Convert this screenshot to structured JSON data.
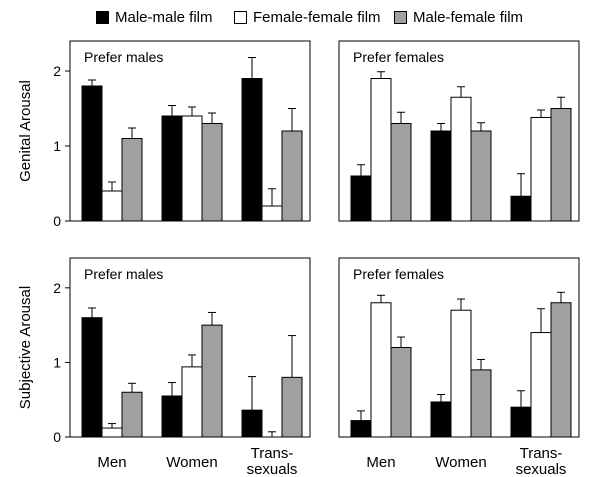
{
  "legend": [
    {
      "name": "Male-male film",
      "color": "#000000"
    },
    {
      "name": "Female-female film",
      "color": "#ffffff"
    },
    {
      "name": "Male-female film",
      "color": "#a0a0a0"
    }
  ],
  "row_labels": [
    "Genital Arousal",
    "Subjective Arousal"
  ],
  "chart_data": [
    {
      "type": "bar",
      "panel_title": "Prefer males",
      "ylabel": "Genital Arousal",
      "categories": [
        "Men",
        "Women",
        "Trans- sexuals"
      ],
      "category_lines": [
        [
          "Men"
        ],
        [
          "Women"
        ],
        [
          "Trans-",
          "sexuals"
        ]
      ],
      "show_category_labels": false,
      "yticks": [
        0,
        1,
        2
      ],
      "ylim": [
        0,
        2.4
      ],
      "series": [
        {
          "name": "Male-male film",
          "values": [
            1.8,
            1.4,
            1.9
          ],
          "errors": [
            0.08,
            0.14,
            0.28
          ]
        },
        {
          "name": "Female-female film",
          "values": [
            0.4,
            1.4,
            0.2
          ],
          "errors": [
            0.12,
            0.12,
            0.23
          ]
        },
        {
          "name": "Male-female film",
          "values": [
            1.1,
            1.3,
            1.2
          ],
          "errors": [
            0.14,
            0.14,
            0.3
          ]
        }
      ]
    },
    {
      "type": "bar",
      "panel_title": "Prefer females",
      "ylabel": "",
      "categories": [
        "Men",
        "Women",
        "Trans- sexuals"
      ],
      "category_lines": [
        [
          "Men"
        ],
        [
          "Women"
        ],
        [
          "Trans-",
          "sexuals"
        ]
      ],
      "show_category_labels": false,
      "yticks": [],
      "ylim": [
        0,
        2.4
      ],
      "series": [
        {
          "name": "Male-male film",
          "values": [
            0.6,
            1.2,
            0.33
          ],
          "errors": [
            0.15,
            0.1,
            0.3
          ]
        },
        {
          "name": "Female-female film",
          "values": [
            1.9,
            1.65,
            1.38
          ],
          "errors": [
            0.09,
            0.14,
            0.1
          ]
        },
        {
          "name": "Male-female film",
          "values": [
            1.3,
            1.2,
            1.5
          ],
          "errors": [
            0.15,
            0.11,
            0.15
          ]
        }
      ]
    },
    {
      "type": "bar",
      "panel_title": "Prefer males",
      "ylabel": "Subjective Arousal",
      "categories": [
        "Men",
        "Women",
        "Trans- sexuals"
      ],
      "category_lines": [
        [
          "Men"
        ],
        [
          "Women"
        ],
        [
          "Trans-",
          "sexuals"
        ]
      ],
      "show_category_labels": true,
      "yticks": [
        0,
        1,
        2
      ],
      "ylim": [
        0,
        2.4
      ],
      "series": [
        {
          "name": "Male-male film",
          "values": [
            1.6,
            0.55,
            0.36
          ],
          "errors": [
            0.13,
            0.18,
            0.45
          ]
        },
        {
          "name": "Female-female film",
          "values": [
            0.12,
            0.94,
            0.0
          ],
          "errors": [
            0.06,
            0.16,
            0.07
          ]
        },
        {
          "name": "Male-female film",
          "values": [
            0.6,
            1.5,
            0.8
          ],
          "errors": [
            0.12,
            0.17,
            0.56
          ]
        }
      ]
    },
    {
      "type": "bar",
      "panel_title": "Prefer females",
      "ylabel": "",
      "categories": [
        "Men",
        "Women",
        "Trans- sexuals"
      ],
      "category_lines": [
        [
          "Men"
        ],
        [
          "Women"
        ],
        [
          "Trans-",
          "sexuals"
        ]
      ],
      "show_category_labels": true,
      "yticks": [],
      "ylim": [
        0,
        2.4
      ],
      "series": [
        {
          "name": "Male-male film",
          "values": [
            0.22,
            0.47,
            0.4
          ],
          "errors": [
            0.13,
            0.1,
            0.22
          ]
        },
        {
          "name": "Female-female film",
          "values": [
            1.8,
            1.7,
            1.4
          ],
          "errors": [
            0.1,
            0.15,
            0.32
          ]
        },
        {
          "name": "Male-female film",
          "values": [
            1.2,
            0.9,
            1.8
          ],
          "errors": [
            0.14,
            0.14,
            0.14
          ]
        }
      ]
    }
  ]
}
